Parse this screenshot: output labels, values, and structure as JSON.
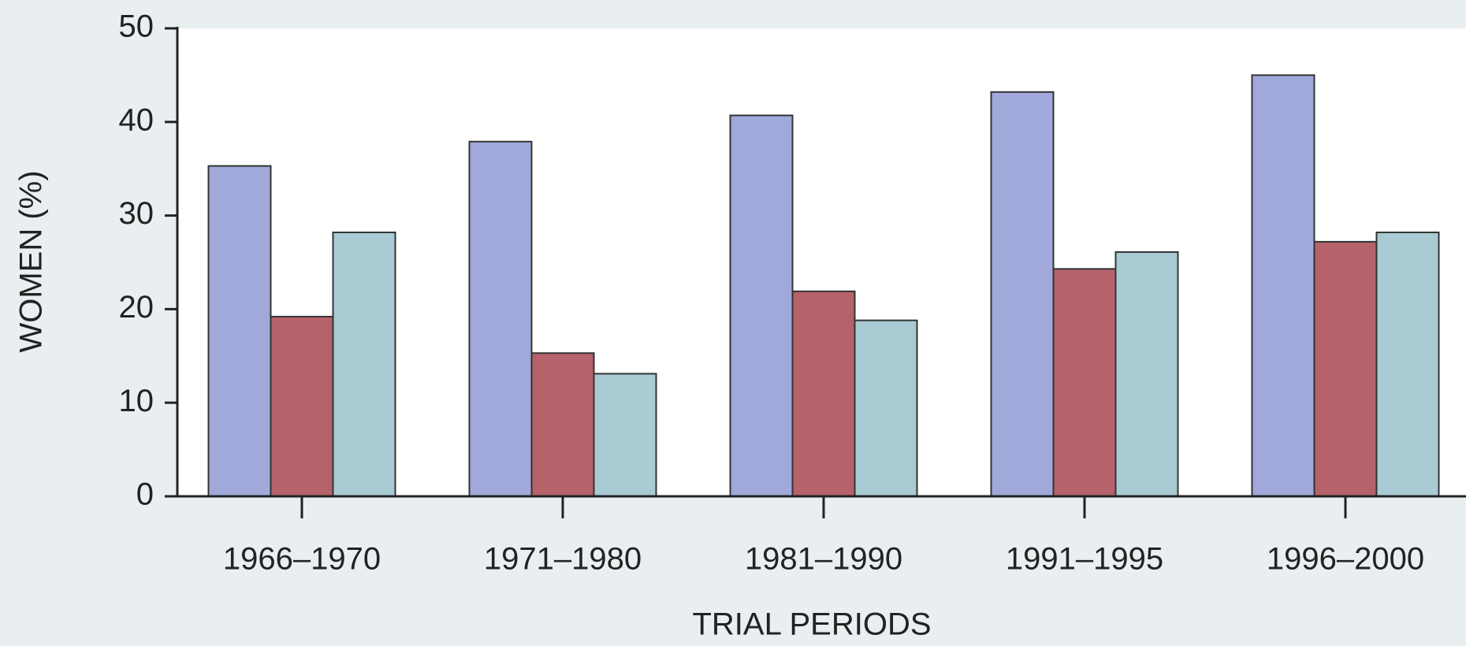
{
  "chart_data": {
    "type": "bar",
    "x_label": "TRIAL PERIODS",
    "y_label": "WOMEN (%)",
    "categories": [
      "1966–1970",
      "1971–1980",
      "1981–1990",
      "1991–1995",
      "1996–2000"
    ],
    "series": [
      {
        "color": "#a0a9d9",
        "values": [
          35.3,
          37.9,
          40.7,
          43.2,
          45.0
        ]
      },
      {
        "color": "#b5626b",
        "values": [
          19.2,
          15.3,
          21.9,
          24.3,
          27.2
        ]
      },
      {
        "color": "#a8cbd4",
        "values": [
          28.2,
          13.1,
          18.8,
          26.1,
          28.2
        ]
      }
    ],
    "ylim": [
      0,
      50
    ],
    "yticks": [
      0,
      10,
      20,
      30,
      40,
      50
    ],
    "grid": false
  }
}
